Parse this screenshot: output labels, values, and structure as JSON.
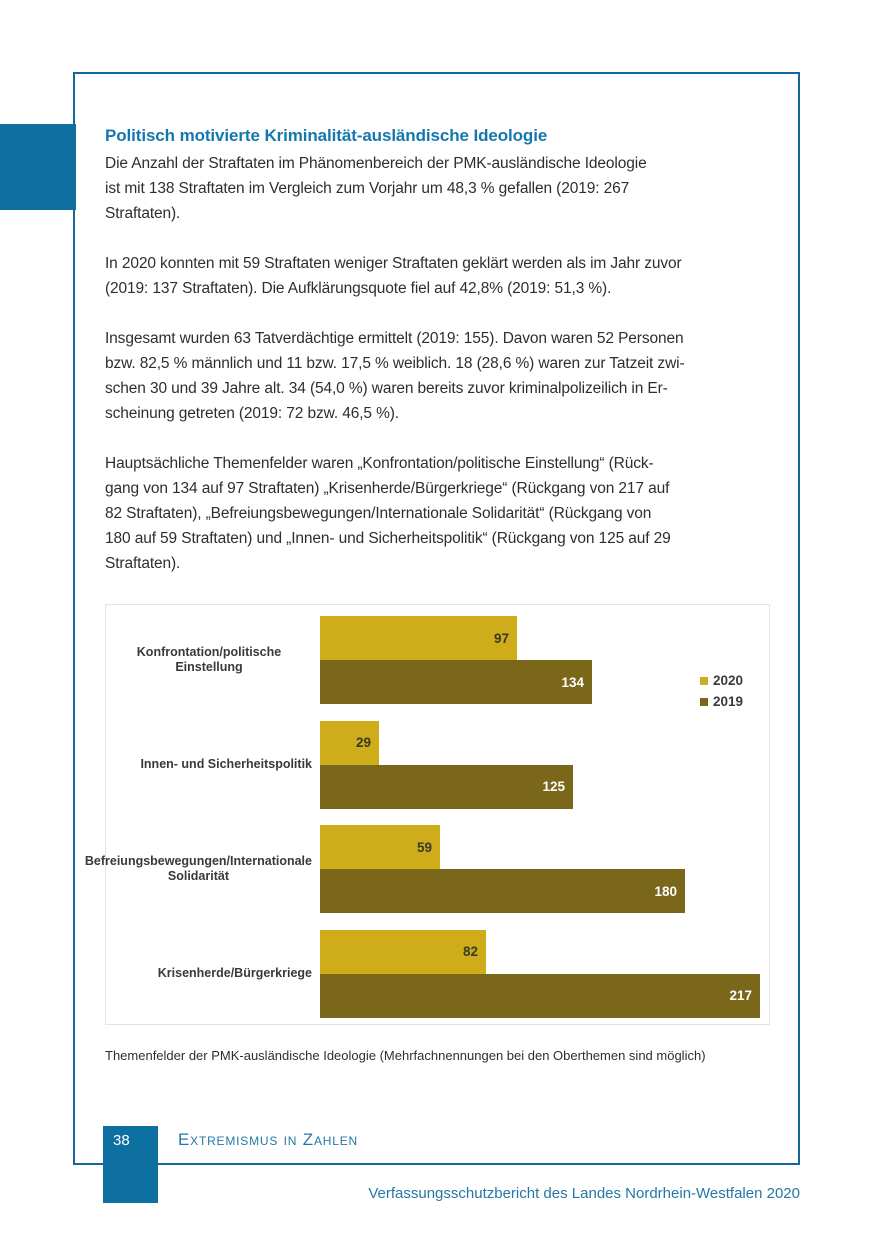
{
  "article": {
    "heading": "Politisch motivierte Kriminalität-ausländische Ideologie",
    "paragraphs": [
      [
        "Die Anzahl der Straftaten im Phänomenbereich der PMK-ausländische Ideologie",
        "ist mit 138 Straftaten im Vergleich zum Vorjahr um 48,3 % gefallen (2019: 267",
        "Straftaten)."
      ],
      [
        "In 2020 konnten mit 59 Straftaten weniger Straftaten geklärt werden als im Jahr zuvor",
        "(2019: 137 Straftaten). Die Aufklärungsquote fiel auf 42,8% (2019: 51,3 %)."
      ],
      [
        "Insgesamt wurden 63 Tatverdächtige ermittelt (2019: 155). Davon waren 52 Personen",
        "bzw. 82,5 % männlich und 11 bzw. 17,5 % weiblich. 18 (28,6 %) waren zur Tatzeit zwi-",
        "schen 30 und 39 Jahre alt. 34 (54,0 %) waren bereits zuvor kriminalpolizeilich in Er-",
        "scheinung getreten (2019: 72 bzw. 46,5 %)."
      ],
      [
        "Hauptsächliche Themenfelder waren „Konfrontation/politische Einstellung“ (Rück-",
        "gang von 134 auf 97 Straftaten) „Krisenherde/Bürgerkriege“ (Rückgang von 217 auf",
        "82 Straftaten), „Befreiungsbewegungen/Internationale Solidarität“ (Rückgang von",
        "180 auf 59 Straftaten) und „Innen- und Sicherheitspolitik“ (Rückgang von 125 auf 29",
        "Straftaten)."
      ]
    ]
  },
  "chart_data": {
    "type": "bar",
    "orientation": "horizontal",
    "title": "",
    "categories": [
      "Konfrontation/politische Einstellung",
      "Innen- und Sicherheitspolitik",
      "Befreiungsbewegungen/Internationale\nSolidarität",
      "Krisenherde/Bürgerkriege"
    ],
    "series": [
      {
        "name": "2020",
        "color": "#cfac19",
        "value_label_color": "#3a3a2a",
        "values": [
          97,
          29,
          59,
          82
        ]
      },
      {
        "name": "2019",
        "color": "#7a671a",
        "value_label_color": "#ffffff",
        "values": [
          134,
          125,
          180,
          217
        ]
      }
    ],
    "xlim": [
      0,
      217
    ],
    "value_labels": true,
    "grid": false,
    "legend_position": "right"
  },
  "chart_caption": "Themenfelder der PMK-ausländische Ideologie (Mehrfachnennungen bei den Oberthemen sind möglich)",
  "footer": {
    "page_number": "38",
    "section_title": "Extremismus in Zahlen",
    "report_title": "Verfassungsschutzbericht des Landes Nordrhein-Westfalen 2020"
  },
  "colors": {
    "heading_blue": "#1578ad",
    "frame_blue": "#14689b",
    "tab_blue": "#0e6fa1",
    "footer_text_blue": "#2577a5",
    "body_text": "#2e2e2e",
    "bar_2020": "#cfac19",
    "bar_2019": "#7a671a"
  }
}
